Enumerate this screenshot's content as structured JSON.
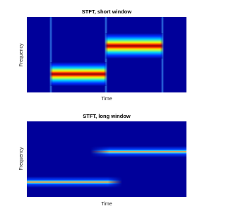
{
  "plots": [
    {
      "title": "STFT, short window",
      "xlabel": "Time",
      "ylabel": "Frequency"
    },
    {
      "title": "STFT, long window",
      "xlabel": "Time",
      "ylabel": "Frequency"
    }
  ]
}
